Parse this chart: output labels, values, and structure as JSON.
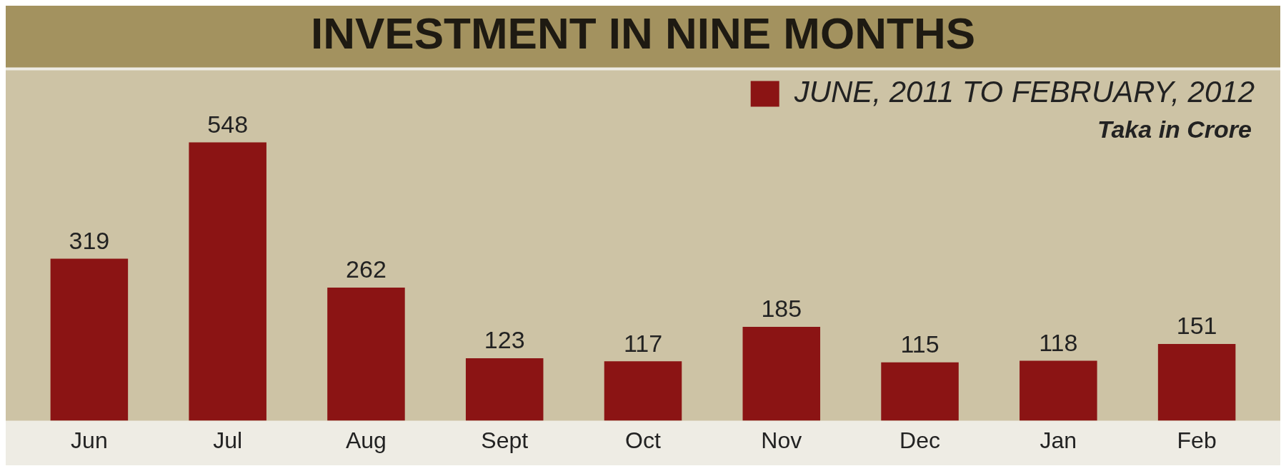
{
  "chart_data": {
    "type": "bar",
    "title": "INVESTMENT IN NINE MONTHS",
    "categories": [
      "Jun",
      "Jul",
      "Aug",
      "Sept",
      "Oct",
      "Nov",
      "Dec",
      "Jan",
      "Feb"
    ],
    "series": [
      {
        "name": "JUNE, 2011 TO FEBRUARY, 2012",
        "color": "#8b1414",
        "values": [
          319,
          548,
          262,
          123,
          117,
          185,
          115,
          118,
          151
        ]
      }
    ],
    "annotations": [
      "Taka in Crore"
    ],
    "data_labels": true,
    "legend": "top right",
    "grid": false
  }
}
